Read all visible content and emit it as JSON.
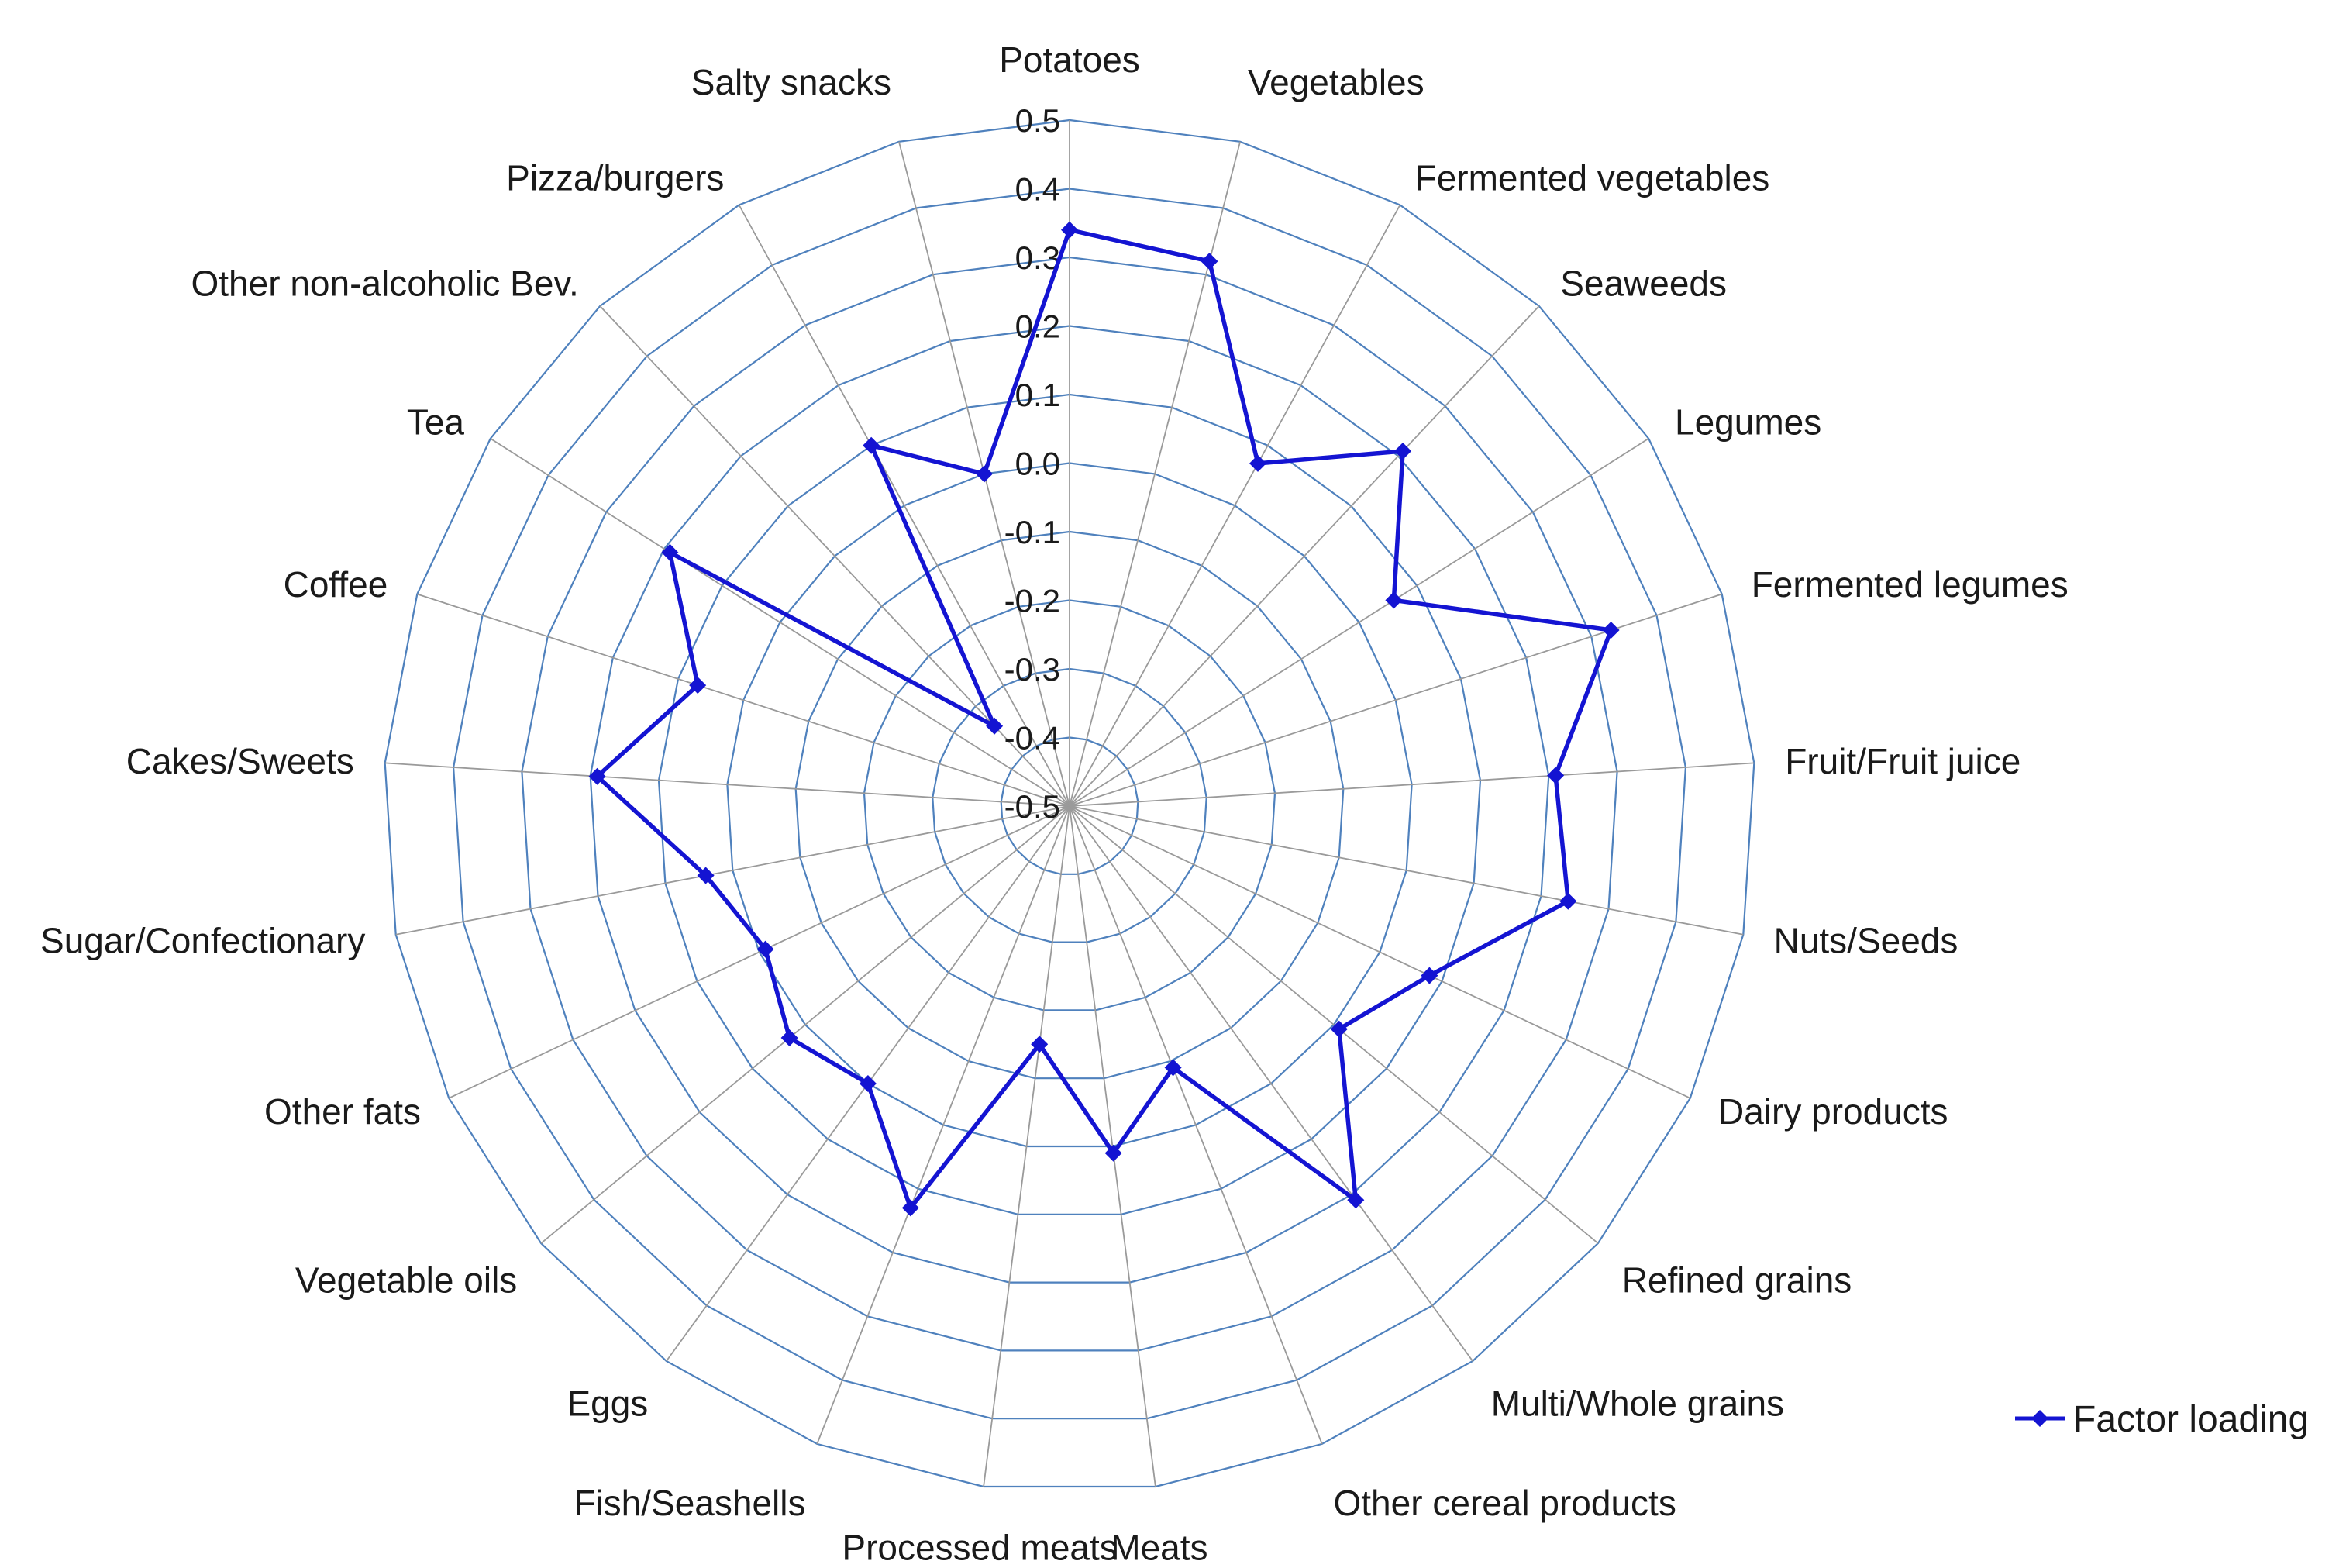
{
  "chart_data": {
    "type": "radar",
    "title": "",
    "categories": [
      "Potatoes",
      "Vegetables",
      "Fermented vegetables",
      "Seaweeds",
      "Legumes",
      "Fermented legumes",
      "Fruit/Fruit juice",
      "Nuts/Seeds",
      "Dairy products",
      "Refined grains",
      "Multi/Whole grains",
      "Other cereal products",
      "Meats",
      "Processed meats",
      "Fish/Seashells",
      "Eggs",
      "Vegetable oils",
      "Other fats",
      "Sugar/Confectionary",
      "Cakes/Sweets",
      "Coffee",
      "Tea",
      "Other non-alcoholic Bev.",
      "Pizza/burgers",
      "Salty snacks"
    ],
    "series": [
      {
        "name": "Factor loading",
        "color": "#1414d2",
        "values": [
          0.34,
          0.32,
          0.07,
          0.21,
          0.06,
          0.33,
          0.21,
          0.24,
          0.08,
          0.01,
          0.21,
          -0.09,
          0.01,
          -0.15,
          0.13,
          0.0,
          0.03,
          -0.01,
          0.04,
          0.19,
          0.07,
          0.19,
          -0.34,
          0.1,
          0.0
        ]
      }
    ],
    "radial_axis": {
      "min": -0.5,
      "max": 0.5,
      "step": 0.1,
      "tick_labels": [
        "-0.5",
        "-0.4",
        "-0.3",
        "-0.2",
        "-0.1",
        "0.0",
        "0.1",
        "0.2",
        "0.3",
        "0.4",
        "0.5"
      ]
    },
    "grid": true,
    "legend_position": "bottom-right"
  },
  "colors": {
    "grid_ring": "#4f81bd",
    "spoke": "#9a9a9a",
    "series": "#1414d2"
  }
}
